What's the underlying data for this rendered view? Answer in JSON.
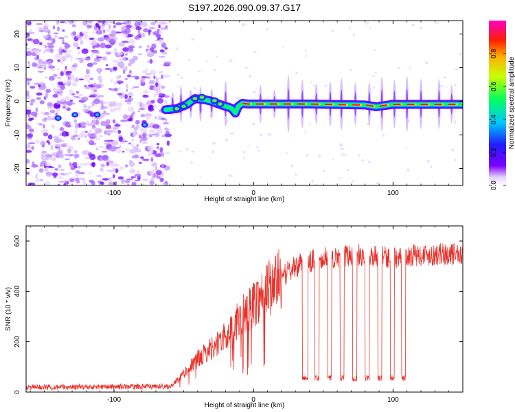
{
  "title": "S197.2026.090.09.37.G17",
  "colors": {
    "snr_line": "#e8312a",
    "colormap": [
      "#ffffff",
      "#e6d0ff",
      "#b070ff",
      "#7a00ff",
      "#2020ff",
      "#00c8ff",
      "#00ff60",
      "#c8ff00",
      "#ffb000",
      "#ff2000",
      "#ff00c8"
    ]
  },
  "chart_data": [
    {
      "id": "spectrogram",
      "type": "heatmap",
      "xlabel": "Height of straight line (km)",
      "ylabel": "Frequency (Hz)",
      "xlim": [
        -163,
        150
      ],
      "ylim": [
        -25,
        24
      ],
      "x_ticks": [
        -100,
        0,
        100
      ],
      "x_tick_labels": [
        "-100",
        "0",
        "100"
      ],
      "y_ticks": [
        -20,
        -10,
        0,
        10,
        20
      ],
      "y_tick_labels": [
        "-20",
        "-10",
        "0",
        "10",
        "20"
      ],
      "colorbar": {
        "label": "Normalized spectral amplitude",
        "range": [
          0,
          1
        ],
        "ticks": [
          0,
          0.2,
          0.4,
          0.6,
          0.8
        ],
        "tick_labels": [
          "0.0",
          "0.2",
          "0.4",
          "0.6",
          "0.8"
        ]
      },
      "noise_region_x": [
        -163,
        -63
      ],
      "tone_path": [
        [
          -63,
          -2.5
        ],
        [
          -55,
          -2.2
        ],
        [
          -48,
          -1.0
        ],
        [
          -42,
          0.8
        ],
        [
          -35,
          0.5
        ],
        [
          -30,
          0.0
        ],
        [
          -25,
          -0.8
        ],
        [
          -20,
          -1.5
        ],
        [
          -16,
          -2.0
        ],
        [
          -13,
          -3.5
        ],
        [
          -11,
          -1.5
        ],
        [
          -8,
          -0.6
        ],
        [
          -4,
          -0.8
        ],
        [
          0,
          -0.8
        ],
        [
          40,
          -0.8
        ],
        [
          80,
          -1.1
        ],
        [
          88,
          -1.6
        ],
        [
          95,
          -1.2
        ],
        [
          100,
          -0.9
        ],
        [
          150,
          -0.9
        ]
      ],
      "spikes_x": [
        -58,
        -52,
        -45,
        -38,
        -30,
        -20,
        5,
        15,
        25,
        35,
        45,
        55,
        63,
        73,
        83,
        92,
        101,
        110,
        120,
        133,
        142
      ]
    },
    {
      "id": "snr",
      "type": "line",
      "xlabel": "Height of straight line (km)",
      "ylabel": "SNR (10 * v/v)",
      "xlim": [
        -163,
        150
      ],
      "ylim": [
        0,
        660
      ],
      "x_ticks": [
        -100,
        0,
        100
      ],
      "x_tick_labels": [
        "-100",
        "0",
        "100"
      ],
      "y_ticks": [
        0,
        200,
        400,
        600
      ],
      "y_tick_labels": [
        "0",
        "200",
        "400",
        "600"
      ],
      "trend": [
        [
          -163,
          15
        ],
        [
          -60,
          18
        ],
        [
          -57,
          35
        ],
        [
          -50,
          75
        ],
        [
          -40,
          130
        ],
        [
          -30,
          175
        ],
        [
          -20,
          220
        ],
        [
          -10,
          290
        ],
        [
          0,
          350
        ],
        [
          10,
          410
        ],
        [
          20,
          455
        ],
        [
          30,
          500
        ],
        [
          40,
          520
        ],
        [
          60,
          540
        ],
        [
          80,
          545
        ],
        [
          100,
          535
        ],
        [
          120,
          545
        ],
        [
          150,
          550
        ]
      ],
      "dips": [
        [
          35,
          39
        ],
        [
          44,
          47
        ],
        [
          53,
          56
        ],
        [
          62,
          65
        ],
        [
          71,
          74
        ],
        [
          80,
          83
        ],
        [
          89,
          92
        ],
        [
          98,
          101
        ],
        [
          106,
          109
        ]
      ],
      "dip_level": 55
    }
  ]
}
